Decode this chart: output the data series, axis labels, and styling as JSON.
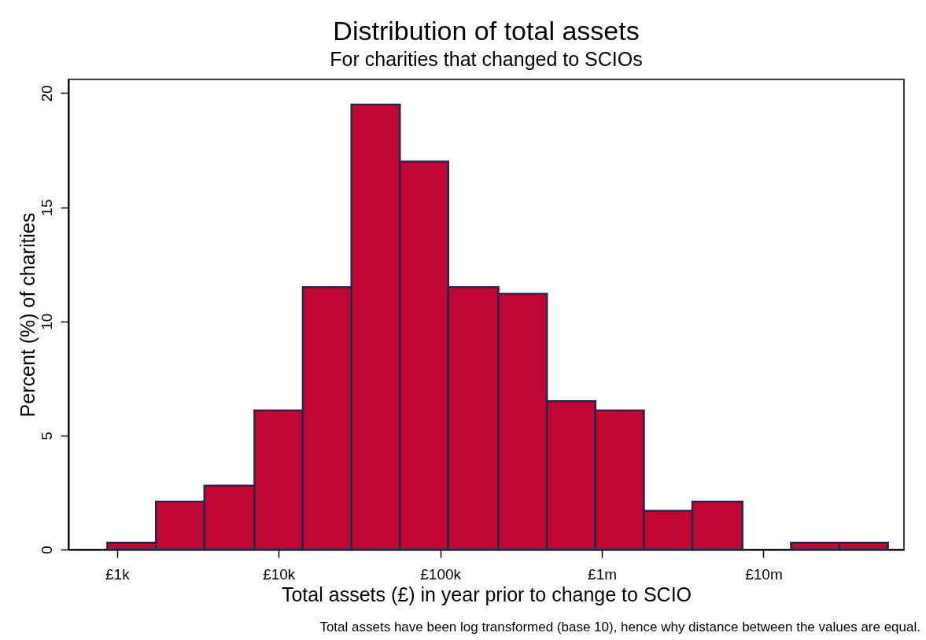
{
  "chart_data": {
    "type": "histogram",
    "title": "Distribution of total assets",
    "subtitle": "For charities that changed to SCIOs",
    "xlabel": "Total assets (£) in year prior to change to SCIO",
    "ylabel": "Percent (%) of charities",
    "annotations": [
      "Total assets have been log transformed (base 10), hence why distance between the values are equal."
    ],
    "bins": [
      870,
      1740,
      3470,
      7080,
      14100,
      28200,
      56200,
      112000,
      229000,
      457000,
      912000,
      1820000,
      3630000,
      7410000,
      14800000,
      29500000,
      58900000
    ],
    "values": [
      0.3,
      2.1,
      2.8,
      6.1,
      11.5,
      19.5,
      17,
      11.5,
      11.2,
      6.5,
      6.1,
      1.7,
      2.1,
      0,
      0.3,
      0.3
    ],
    "color": "#c00632",
    "log": "x",
    "xlim": [
      500,
      74000000
    ],
    "xticks": [
      {
        "value": 1000,
        "label": "£1k"
      },
      {
        "value": 10000,
        "label": "£10k"
      },
      {
        "value": 100000,
        "label": "£100k"
      },
      {
        "value": 1000000,
        "label": "£1m"
      },
      {
        "value": 10000000,
        "label": "£10m"
      }
    ],
    "ylim": [
      0,
      20.6
    ],
    "yticks": [
      0,
      5,
      10,
      15,
      20
    ],
    "grid": false
  }
}
